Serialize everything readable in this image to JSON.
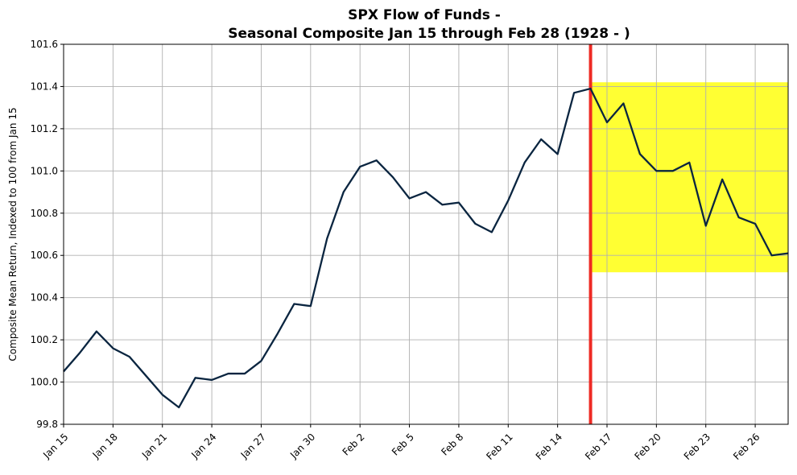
{
  "chart_data": {
    "type": "line",
    "title_line1": "SPX Flow of Funds -",
    "title_line2": "Seasonal Composite Jan 15 through Feb 28 (1928 - )",
    "xlabel": "",
    "ylabel": "Composite Mean Return, Indexed to 100 from Jan 15",
    "ylim": [
      99.8,
      101.6
    ],
    "xlim": [
      0,
      44
    ],
    "y_ticks": [
      99.8,
      100.0,
      100.2,
      100.4,
      100.6,
      100.8,
      101.0,
      101.2,
      101.4,
      101.6
    ],
    "y_tick_labels": [
      "99.8",
      "100.0",
      "100.2",
      "100.4",
      "100.6",
      "100.8",
      "101.0",
      "101.2",
      "101.4",
      "101.6"
    ],
    "x_ticks": [
      0,
      3,
      6,
      9,
      12,
      15,
      18,
      21,
      24,
      27,
      30,
      33,
      36,
      39,
      42
    ],
    "x_tick_labels": [
      "Jan 15",
      "Jan 18",
      "Jan 21",
      "Jan 24",
      "Jan 27",
      "Jan 30",
      "Feb 2",
      "Feb 5",
      "Feb 8",
      "Feb 11",
      "Feb 14",
      "Feb 17",
      "Feb 20",
      "Feb 23",
      "Feb 26"
    ],
    "grid": true,
    "series": [
      {
        "name": "Composite",
        "color": "#0a2540",
        "x": [
          0,
          1,
          2,
          3,
          4,
          5,
          6,
          7,
          8,
          9,
          10,
          11,
          12,
          13,
          14,
          15,
          16,
          17,
          18,
          19,
          20,
          21,
          22,
          23,
          24,
          25,
          26,
          27,
          28,
          29,
          30,
          31,
          32,
          33,
          34,
          35,
          36,
          37,
          38,
          39,
          40,
          41,
          42,
          43,
          44
        ],
        "values": [
          100.05,
          100.14,
          100.24,
          100.16,
          100.12,
          100.03,
          99.94,
          99.88,
          100.02,
          100.01,
          100.04,
          100.04,
          100.1,
          100.23,
          100.37,
          100.36,
          100.68,
          100.9,
          101.02,
          101.05,
          100.97,
          100.87,
          100.9,
          100.84,
          100.85,
          100.75,
          100.71,
          100.86,
          101.04,
          101.15,
          101.08,
          101.37,
          101.39,
          101.23,
          101.32,
          101.08,
          101.0,
          101.0,
          101.04,
          100.74,
          100.96,
          100.78,
          100.75,
          100.6,
          100.61
        ]
      }
    ],
    "marker_line": {
      "x": 32,
      "color": "#ee2a24"
    },
    "highlight_region": {
      "x_start": 32,
      "x_end": 44,
      "y_start": 100.52,
      "y_end": 101.42,
      "color": "#ffff33"
    }
  }
}
